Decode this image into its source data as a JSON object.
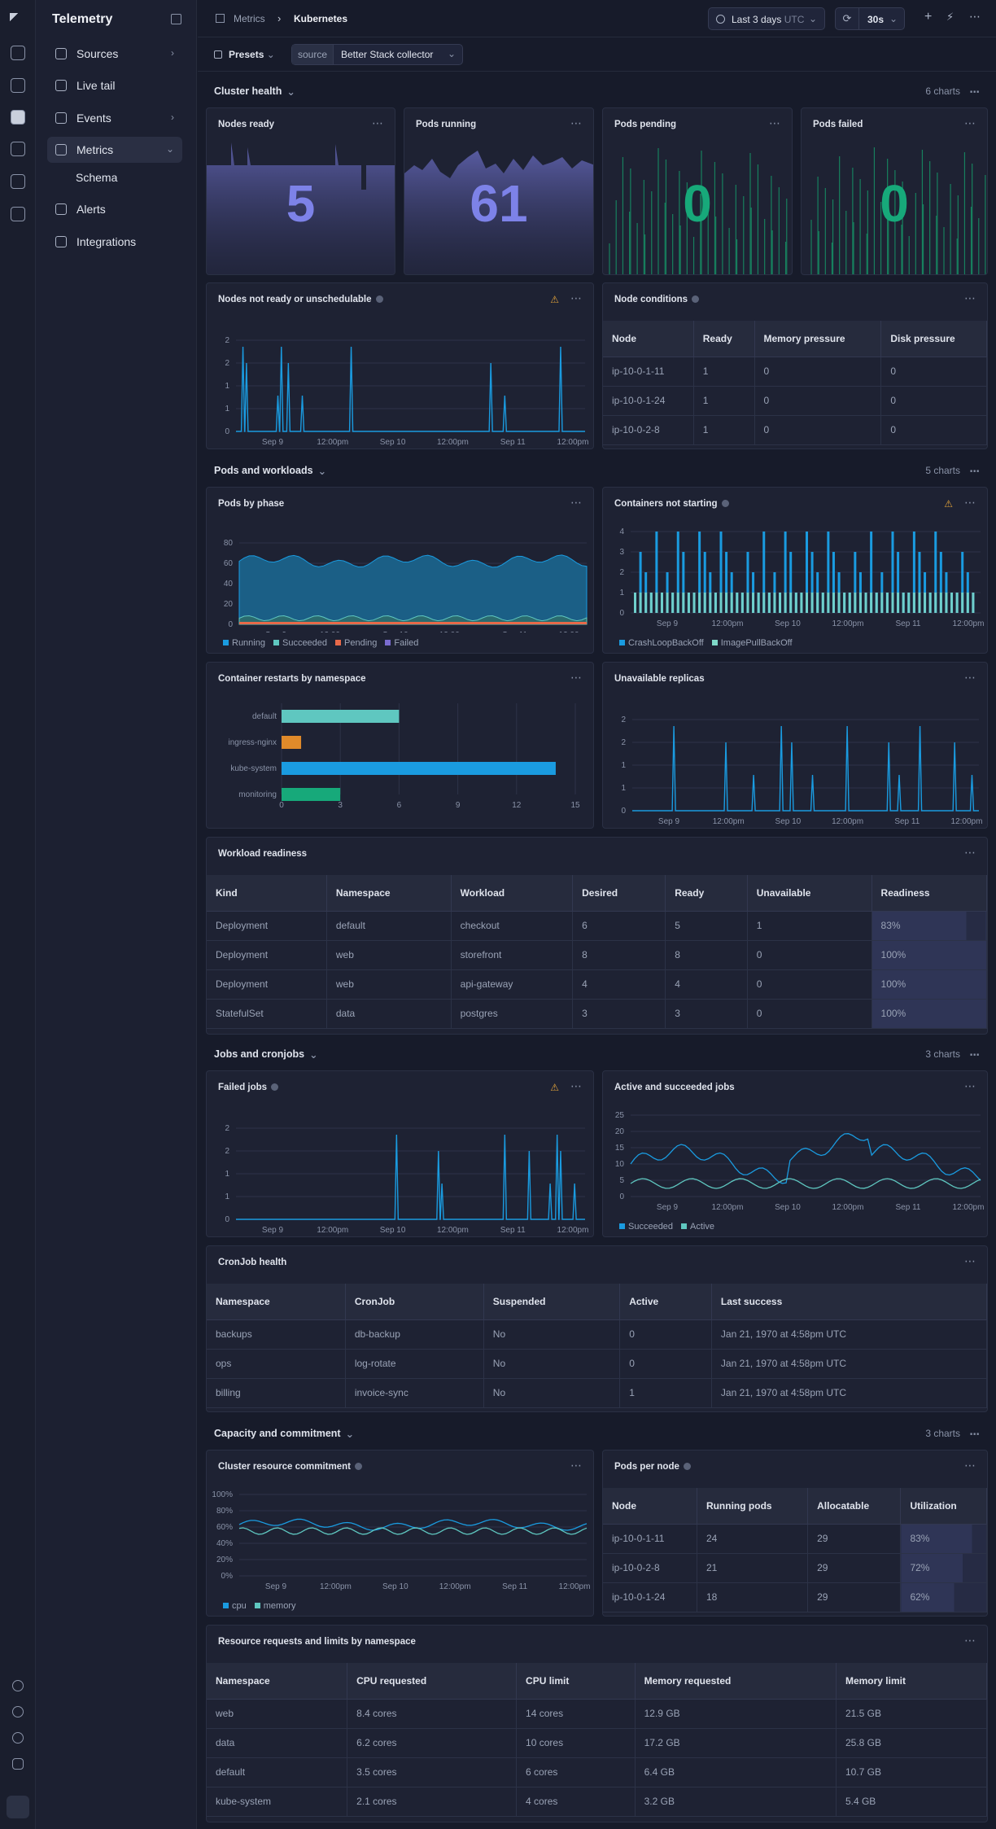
{
  "app": {
    "title": "Telemetry"
  },
  "nav": {
    "items": [
      {
        "label": "Sources",
        "chev": "›"
      },
      {
        "label": "Live tail"
      },
      {
        "label": "Events",
        "chev": "›"
      },
      {
        "label": "Metrics",
        "chev": "⌄"
      },
      {
        "label": "Schema"
      },
      {
        "label": "Alerts"
      },
      {
        "label": "Integrations"
      }
    ]
  },
  "topbar": {
    "crumb1": "Metrics",
    "sep": "›",
    "crumb2": "Kubernetes",
    "time": "Last 3 days",
    "tz": "UTC",
    "refresh": "30s",
    "presets": "Presets",
    "source_label": "source",
    "source_value": "Better Stack collector"
  },
  "sections": {
    "s1": {
      "title": "Cluster health",
      "count": "6 charts"
    },
    "s2": {
      "title": "Pods and workloads",
      "count": "5 charts"
    },
    "s3": {
      "title": "Jobs and cronjobs",
      "count": "3 charts"
    },
    "s4": {
      "title": "Capacity and commitment",
      "count": "3 charts"
    }
  },
  "stats": [
    {
      "title": "Nodes ready",
      "value": "5"
    },
    {
      "title": "Pods running",
      "value": "61"
    },
    {
      "title": "Pods pending",
      "value": "0"
    },
    {
      "title": "Pods failed",
      "value": "0"
    }
  ],
  "cards": {
    "nodes_not_ready": "Nodes not ready or unschedulable",
    "node_conditions": "Node conditions",
    "pods_by_phase": "Pods by phase",
    "containers_not_starting": "Containers not starting",
    "restarts": "Container restarts by namespace",
    "unavailable": "Unavailable replicas",
    "workload": "Workload readiness",
    "failed_jobs": "Failed jobs",
    "active_jobs": "Active and succeeded jobs",
    "cronjob": "CronJob health",
    "commitment": "Cluster resource commitment",
    "pods_per_node": "Pods per node",
    "requests": "Resource requests and limits by namespace"
  },
  "xticks": [
    "Sep 9",
    "12:00pm",
    "Sep 10",
    "12:00pm",
    "Sep 11",
    "12:00pm"
  ],
  "tables": {
    "node_conditions": {
      "headers": [
        "Node",
        "Ready",
        "Memory pressure",
        "Disk pressure"
      ],
      "rows": [
        [
          "ip-10-0-1-11",
          "1",
          "0",
          "0"
        ],
        [
          "ip-10-0-1-24",
          "1",
          "0",
          "0"
        ],
        [
          "ip-10-0-2-8",
          "1",
          "0",
          "0"
        ]
      ]
    },
    "workload": {
      "headers": [
        "Kind",
        "Namespace",
        "Workload",
        "Desired",
        "Ready",
        "Unavailable",
        "Readiness"
      ],
      "rows": [
        [
          "Deployment",
          "default",
          "checkout",
          "6",
          "5",
          "1",
          "83%"
        ],
        [
          "Deployment",
          "web",
          "storefront",
          "8",
          "8",
          "0",
          "100%"
        ],
        [
          "Deployment",
          "web",
          "api-gateway",
          "4",
          "4",
          "0",
          "100%"
        ],
        [
          "StatefulSet",
          "data",
          "postgres",
          "3",
          "3",
          "0",
          "100%"
        ]
      ],
      "readiness": [
        0.83,
        1,
        1,
        1
      ]
    },
    "cronjob": {
      "headers": [
        "Namespace",
        "CronJob",
        "Suspended",
        "Active",
        "Last success"
      ],
      "rows": [
        [
          "backups",
          "db-backup",
          "No",
          "0",
          "Jan 21, 1970 at 4:58pm UTC"
        ],
        [
          "ops",
          "log-rotate",
          "No",
          "0",
          "Jan 21, 1970 at 4:58pm UTC"
        ],
        [
          "billing",
          "invoice-sync",
          "No",
          "1",
          "Jan 21, 1970 at 4:58pm UTC"
        ]
      ]
    },
    "pods_per_node": {
      "headers": [
        "Node",
        "Running pods",
        "Allocatable",
        "Utilization"
      ],
      "rows": [
        [
          "ip-10-0-1-11",
          "24",
          "29",
          "83%"
        ],
        [
          "ip-10-0-2-8",
          "21",
          "29",
          "72%"
        ],
        [
          "ip-10-0-1-24",
          "18",
          "29",
          "62%"
        ]
      ],
      "util": [
        0.83,
        0.72,
        0.62
      ]
    },
    "requests": {
      "headers": [
        "Namespace",
        "CPU requested",
        "CPU limit",
        "Memory requested",
        "Memory limit"
      ],
      "rows": [
        [
          "web",
          "8.4 cores",
          "14 cores",
          "12.9 GB",
          "21.5 GB"
        ],
        [
          "data",
          "6.2 cores",
          "10 cores",
          "17.2 GB",
          "25.8 GB"
        ],
        [
          "default",
          "3.5 cores",
          "6 cores",
          "6.4 GB",
          "10.7 GB"
        ],
        [
          "kube-system",
          "2.1 cores",
          "4 cores",
          "3.2 GB",
          "5.4 GB"
        ]
      ]
    }
  },
  "chart_data": [
    {
      "type": "bar",
      "title": "Container restarts by namespace",
      "categories": [
        "default",
        "ingress-nginx",
        "kube-system",
        "monitoring"
      ],
      "values": [
        6,
        1,
        14,
        3
      ],
      "xlim": [
        0,
        15
      ],
      "xticks": [
        "0",
        "3",
        "6",
        "9",
        "12",
        "15"
      ],
      "colors": [
        "#5fc7c0",
        "#e08a2a",
        "#1a9be0",
        "#17a97a"
      ]
    },
    {
      "type": "area",
      "title": "Pods by phase",
      "yticks": [
        "80",
        "60",
        "40",
        "20",
        "0"
      ],
      "series": [
        {
          "name": "Running",
          "color": "#1a9be0"
        },
        {
          "name": "Succeeded",
          "color": "#5fc7c0"
        },
        {
          "name": "Pending",
          "color": "#e86a4a"
        },
        {
          "name": "Failed",
          "color": "#7a6cd0"
        }
      ]
    },
    {
      "type": "bar",
      "title": "Containers not starting",
      "yticks": [
        "4",
        "3",
        "2",
        "1",
        "0"
      ],
      "series": [
        {
          "name": "CrashLoopBackOff",
          "color": "#1a9be0"
        },
        {
          "name": "ImagePullBackOff",
          "color": "#7fd8c8"
        }
      ]
    },
    {
      "type": "line",
      "title": "Active and succeeded jobs",
      "yticks": [
        "25",
        "20",
        "15",
        "10",
        "5",
        "0"
      ],
      "series": [
        {
          "name": "Succeeded",
          "color": "#1a9be0"
        },
        {
          "name": "Active",
          "color": "#5fc7c0"
        }
      ]
    },
    {
      "type": "line",
      "title": "Cluster resource commitment",
      "yticks": [
        "100%",
        "80%",
        "60%",
        "40%",
        "20%",
        "0%"
      ],
      "series": [
        {
          "name": "cpu",
          "color": "#1a9be0"
        },
        {
          "name": "memory",
          "color": "#5fc7c0"
        }
      ]
    }
  ]
}
